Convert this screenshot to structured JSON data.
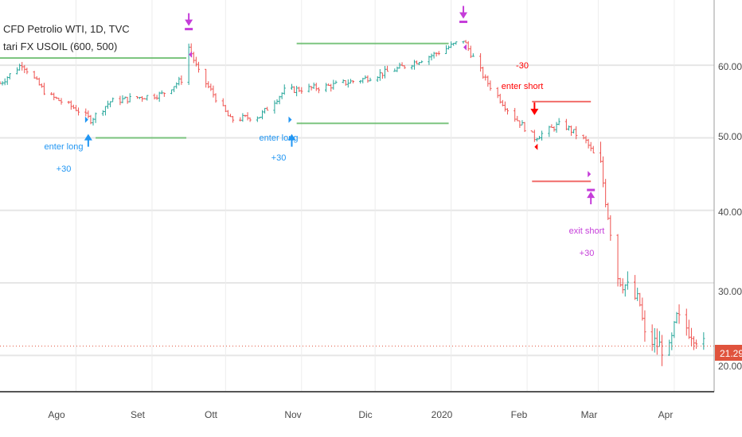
{
  "legend": {
    "symbol_line": "CFD Petrolio WTI, 1D, TVC",
    "indicator_line": "tari FX USOIL (600, 500)"
  },
  "price_scale": {
    "ticks": [
      "60.00",
      "50.00",
      "40.00",
      "30.00"
    ],
    "last_price": "21.29",
    "last_price_color": "#e0533d",
    "hidden_tick": "20.00"
  },
  "time_scale": {
    "ticks": [
      "Ago",
      "Set",
      "Ott",
      "Nov",
      "Dic",
      "2020",
      "Feb",
      "Mar",
      "Apr"
    ]
  },
  "annotations": {
    "enter_long_1": {
      "label": "enter long",
      "value": "+30"
    },
    "enter_long_2": {
      "label": "enter long",
      "value": "+30"
    },
    "enter_short": {
      "value": "-30",
      "label": "enter short"
    },
    "exit_short": {
      "label": "exit short",
      "value": "+30"
    }
  },
  "colors": {
    "up": "#26a69a",
    "down": "#ef5350",
    "long": "#2196f3",
    "short": "#ff0000",
    "exit": "#c53dd9",
    "target_green": "#66bb6a",
    "target_red": "#ef5350"
  },
  "chart_data": {
    "type": "candlestick",
    "x_range": [
      "2019-07-01",
      "2020-04-15"
    ],
    "ylim": [
      15,
      69
    ],
    "grid": true,
    "last_close": 21.29,
    "approx_close_path": [
      {
        "date": "2019-07-01",
        "close": 57.5
      },
      {
        "date": "2019-07-10",
        "close": 60.2
      },
      {
        "date": "2019-07-20",
        "close": 56.0
      },
      {
        "date": "2019-08-01",
        "close": 54.0
      },
      {
        "date": "2019-08-07",
        "close": 52.5
      },
      {
        "date": "2019-08-15",
        "close": 55.0
      },
      {
        "date": "2019-08-25",
        "close": 55.5
      },
      {
        "date": "2019-09-05",
        "close": 56.0
      },
      {
        "date": "2019-09-13",
        "close": 58.0
      },
      {
        "date": "2019-09-16",
        "close": 62.5
      },
      {
        "date": "2019-09-20",
        "close": 59.0
      },
      {
        "date": "2019-10-03",
        "close": 52.5
      },
      {
        "date": "2019-10-15",
        "close": 53.0
      },
      {
        "date": "2019-10-25",
        "close": 56.5
      },
      {
        "date": "2019-11-10",
        "close": 57.0
      },
      {
        "date": "2019-11-25",
        "close": 58.0
      },
      {
        "date": "2019-12-10",
        "close": 59.5
      },
      {
        "date": "2019-12-25",
        "close": 61.5
      },
      {
        "date": "2020-01-06",
        "close": 63.5
      },
      {
        "date": "2020-01-15",
        "close": 58.0
      },
      {
        "date": "2020-01-25",
        "close": 53.5
      },
      {
        "date": "2020-02-04",
        "close": 50.0
      },
      {
        "date": "2020-02-15",
        "close": 52.0
      },
      {
        "date": "2020-02-25",
        "close": 49.5
      },
      {
        "date": "2020-03-02",
        "close": 46.0
      },
      {
        "date": "2020-03-09",
        "close": 31.0
      },
      {
        "date": "2020-03-18",
        "close": 27.0
      },
      {
        "date": "2020-03-20",
        "close": 22.5
      },
      {
        "date": "2020-03-30",
        "close": 20.5
      },
      {
        "date": "2020-04-02",
        "close": 25.0
      },
      {
        "date": "2020-04-09",
        "close": 23.0
      },
      {
        "date": "2020-04-13",
        "close": 21.29
      }
    ],
    "target_lines": [
      {
        "color": "green",
        "y": 61.0,
        "x_from": "2019-07-01",
        "x_to": "2019-09-15"
      },
      {
        "color": "green",
        "y": 50.0,
        "x_from": "2019-08-09",
        "x_to": "2019-09-15"
      },
      {
        "color": "green",
        "y": 63.0,
        "x_from": "2019-10-30",
        "x_to": "2019-12-31"
      },
      {
        "color": "green",
        "y": 52.0,
        "x_from": "2019-10-30",
        "x_to": "2019-12-31"
      },
      {
        "color": "red",
        "y": 55.0,
        "x_from": "2020-02-03",
        "x_to": "2020-02-27"
      },
      {
        "color": "red",
        "y": 44.0,
        "x_from": "2020-02-03",
        "x_to": "2020-02-27"
      }
    ],
    "signals": [
      {
        "kind": "enter long",
        "date": "2019-08-06",
        "price": 52.5
      },
      {
        "kind": "enter long",
        "date": "2019-10-28",
        "price": 52.5
      },
      {
        "kind": "exit",
        "date": "2019-09-16",
        "price": 62.8
      },
      {
        "kind": "exit",
        "date": "2020-01-06",
        "price": 63.8
      },
      {
        "kind": "enter short",
        "date": "2020-02-04",
        "price": 50.5
      },
      {
        "kind": "exit short",
        "date": "2020-02-27",
        "price": 45.0
      }
    ]
  }
}
